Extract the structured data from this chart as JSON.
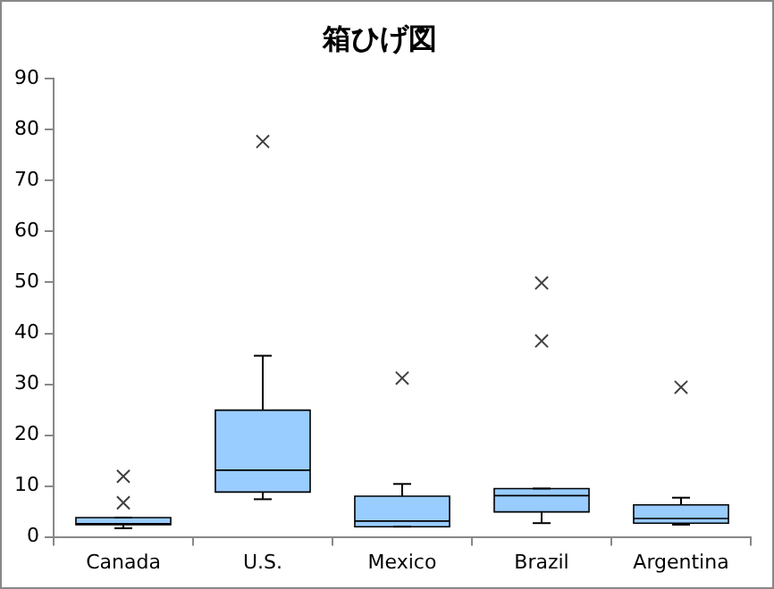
{
  "chart_data": {
    "type": "box",
    "title": "箱ひげ図",
    "categories": [
      "Canada",
      "U.S.",
      "Mexico",
      "Brazil",
      "Argentina"
    ],
    "boxes": [
      {
        "low": 1.7,
        "q1": 2.4,
        "median": 2.6,
        "q3": 3.8,
        "high": 3.8,
        "outliers": [
          6.7,
          11.9
        ]
      },
      {
        "low": 7.4,
        "q1": 8.8,
        "median": 13.1,
        "q3": 24.9,
        "high": 35.6,
        "outliers": [
          77.7
        ]
      },
      {
        "low": 2.0,
        "q1": 2.0,
        "median": 3.1,
        "q3": 8.0,
        "high": 10.4,
        "outliers": [
          31.2
        ]
      },
      {
        "low": 2.7,
        "q1": 4.9,
        "median": 8.1,
        "q3": 9.5,
        "high": 9.5,
        "outliers": [
          38.5,
          49.9
        ]
      },
      {
        "low": 2.4,
        "q1": 2.7,
        "median": 3.6,
        "q3": 6.3,
        "high": 7.7,
        "outliers": [
          29.4
        ]
      }
    ],
    "color": "#99ccff",
    "ylim": [
      0,
      90
    ],
    "yticks": [
      0,
      10,
      20,
      30,
      40,
      50,
      60,
      70,
      80,
      90
    ],
    "grid": false,
    "legend": false,
    "marker": "cross"
  }
}
